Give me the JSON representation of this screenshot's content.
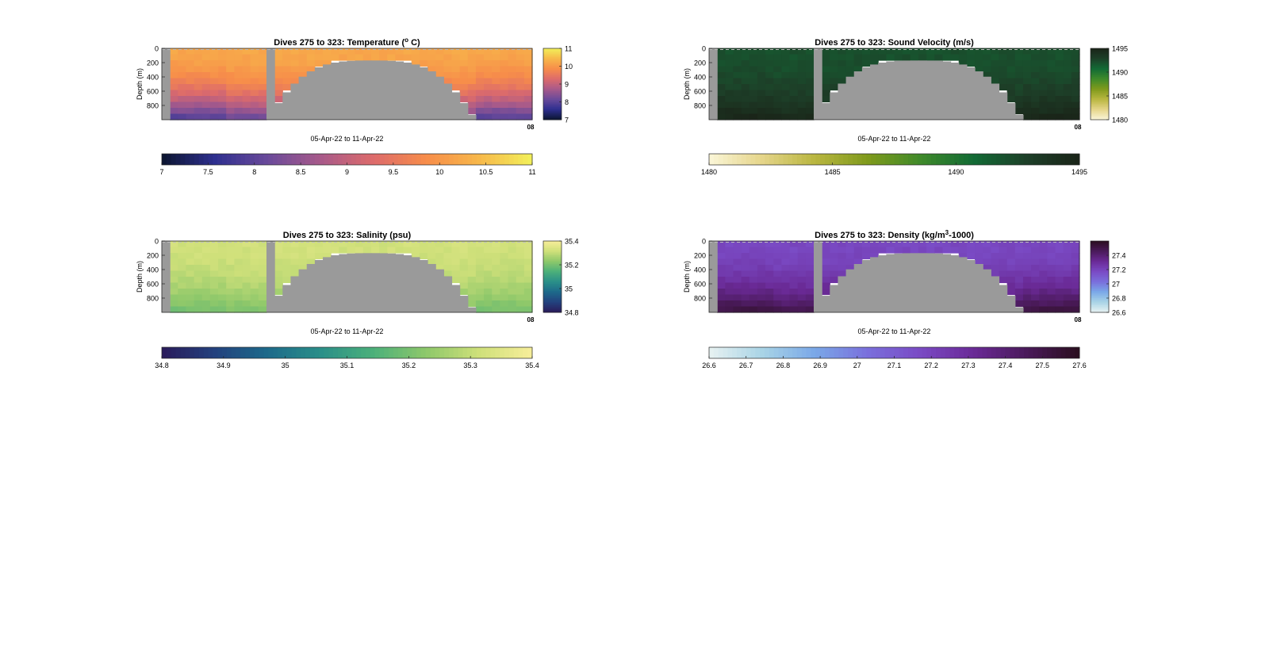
{
  "chart_data": [
    {
      "type": "heatmap",
      "title": "Dives 275 to 323: Temperature (",
      "title_sup": "o",
      "title_end": " C)",
      "ylabel": "Depth (m)",
      "xlabel": "05-Apr-22 to 11-Apr-22",
      "x_tick_label": "08",
      "y_ticks": [
        0,
        200,
        400,
        600,
        800
      ],
      "ylim": [
        0,
        1000
      ],
      "colormap": [
        "#0b1530",
        "#2e2f8f",
        "#6a4a9a",
        "#a85a8a",
        "#dd6b6b",
        "#f78d4a",
        "#f7b84a",
        "#f2f05a"
      ],
      "range": [
        7,
        11
      ],
      "surface_value": 10.2,
      "deep_value": 8.0,
      "side_colorbar_ticks": [
        7,
        8,
        9,
        10,
        11
      ],
      "bottom_colorbar_ticks": [
        "7",
        "7.5",
        "8",
        "8.5",
        "9",
        "9.5",
        "10",
        "10.5",
        "11"
      ]
    },
    {
      "type": "heatmap",
      "title": "Dives 275 to 323: Sound Velocity (m/s)",
      "title_sup": "",
      "title_end": "",
      "ylabel": "Depth (m)",
      "xlabel": "05-Apr-22 to 11-Apr-22",
      "x_tick_label": "08",
      "y_ticks": [
        0,
        200,
        400,
        600,
        800
      ],
      "ylim": [
        0,
        1000
      ],
      "colormap": [
        "#fbf6d8",
        "#e5d58a",
        "#b9b640",
        "#7f9a1c",
        "#3f8a2a",
        "#126a35",
        "#1d3f28",
        "#1a2418"
      ],
      "range": [
        1480,
        1495
      ],
      "surface_value": 1492.0,
      "deep_value": 1494.6,
      "side_colorbar_ticks": [
        1480,
        1485,
        1490,
        1495
      ],
      "bottom_colorbar_ticks": [
        "1480",
        "1485",
        "1490",
        "1495"
      ]
    },
    {
      "type": "heatmap",
      "title": "Dives 275 to 323: Salinity (psu)",
      "title_sup": "",
      "title_end": "",
      "ylabel": "Depth (m)",
      "xlabel": "05-Apr-22 to 11-Apr-22",
      "x_tick_label": "08",
      "y_ticks": [
        0,
        200,
        400,
        600,
        800
      ],
      "ylim": [
        0,
        1000
      ],
      "colormap": [
        "#2a1b5a",
        "#23417e",
        "#1d6a8a",
        "#2a8f89",
        "#4cb07a",
        "#8ec86a",
        "#cfe07a",
        "#f7ee9a"
      ],
      "range": [
        34.8,
        35.4
      ],
      "surface_value": 35.32,
      "deep_value": 35.2,
      "side_colorbar_ticks": [
        34.8,
        35,
        35.2,
        35.4
      ],
      "bottom_colorbar_ticks": [
        "34.8",
        "34.9",
        "35",
        "35.1",
        "35.2",
        "35.3",
        "35.4"
      ]
    },
    {
      "type": "heatmap",
      "title": "Dives 275 to 323: Density (kg/m",
      "title_sup": "3",
      "title_end": "-1000)",
      "ylabel": "Depth (m)",
      "xlabel": "05-Apr-22 to 11-Apr-22",
      "x_tick_label": "08",
      "y_ticks": [
        0,
        200,
        400,
        600,
        800
      ],
      "ylim": [
        0,
        1000
      ],
      "colormap": [
        "#e8f2f2",
        "#a9d4e6",
        "#7aa8e8",
        "#7a6fdc",
        "#7a4ac4",
        "#6a2a96",
        "#4a1a5a",
        "#2a0e1e"
      ],
      "range": [
        26.6,
        27.6
      ],
      "surface_value": 27.18,
      "deep_value": 27.5,
      "side_colorbar_ticks": [
        26.6,
        26.8,
        27,
        27.2,
        27.4
      ],
      "bottom_colorbar_ticks": [
        "26.6",
        "26.7",
        "26.8",
        "26.9",
        "27",
        "27.1",
        "27.2",
        "27.3",
        "27.4",
        "27.5",
        "27.6"
      ]
    }
  ]
}
